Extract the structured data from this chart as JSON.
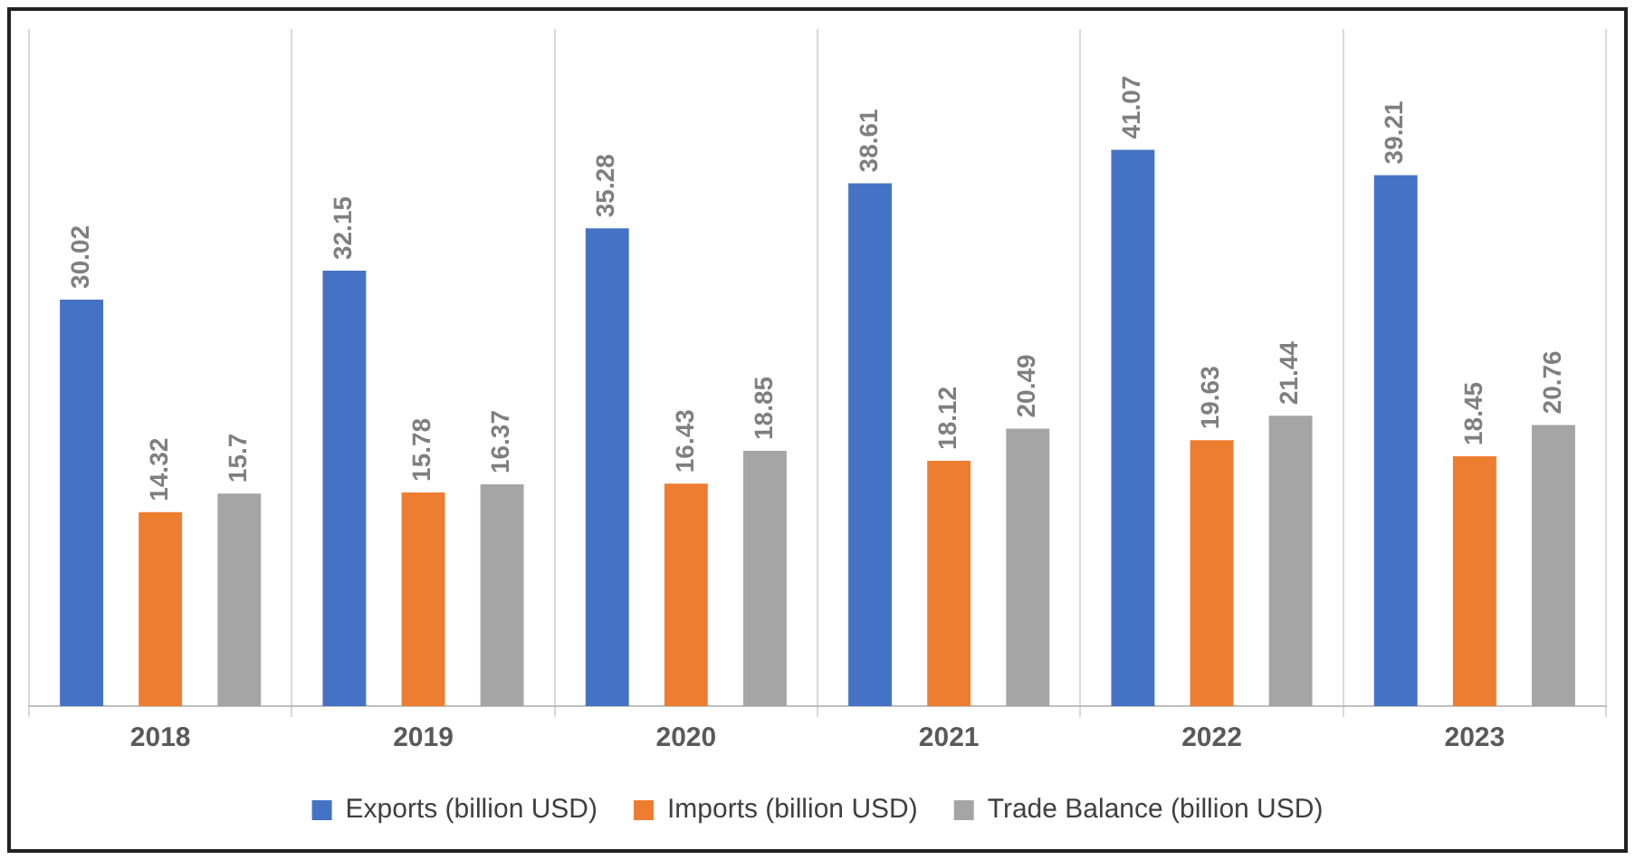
{
  "chart_data": {
    "type": "bar",
    "categories": [
      "2018",
      "2019",
      "2020",
      "2021",
      "2022",
      "2023"
    ],
    "series": [
      {
        "name": "Exports (billion USD)",
        "color": "#4472c4",
        "values": [
          30.02,
          32.15,
          35.28,
          38.61,
          41.07,
          39.21
        ]
      },
      {
        "name": "Imports (billion USD)",
        "color": "#ed7d31",
        "values": [
          14.32,
          15.78,
          16.43,
          18.12,
          19.63,
          18.45
        ]
      },
      {
        "name": "Trade Balance (billion USD)",
        "color": "#a5a5a5",
        "values": [
          15.7,
          16.37,
          18.85,
          20.49,
          21.44,
          20.76
        ]
      }
    ],
    "data_labels": true,
    "grid": "x",
    "legend": "bottom"
  }
}
